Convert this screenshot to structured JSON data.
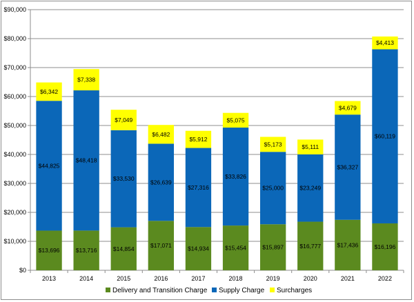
{
  "chart_data": {
    "type": "bar",
    "stacked": true,
    "categories": [
      "2013",
      "2014",
      "2015",
      "2016",
      "2017",
      "2018",
      "2019",
      "2020",
      "2021",
      "2022"
    ],
    "series": [
      {
        "name": "Delivery and Transition Charge",
        "color": "#5b8a1f",
        "values": [
          13696,
          13716,
          14854,
          17071,
          14934,
          15454,
          15897,
          16777,
          17436,
          16196
        ],
        "labels": [
          "$13,696",
          "$13,716",
          "$14,854",
          "$17,071",
          "$14,934",
          "$15,454",
          "$15,897",
          "$16,777",
          "$17,436",
          "$16,196"
        ]
      },
      {
        "name": "Supply Charge",
        "color": "#0b67b8",
        "values": [
          44825,
          48418,
          33530,
          26639,
          27316,
          33826,
          25000,
          23249,
          36327,
          60119
        ],
        "labels": [
          "$44,825",
          "$48,418",
          "$33,530",
          "$26,639",
          "$27,316",
          "$33,826",
          "$25,000",
          "$23,249",
          "$36,327",
          "$60,119"
        ]
      },
      {
        "name": "Surcharges",
        "color": "#ffff00",
        "values": [
          6342,
          7338,
          7049,
          6482,
          5912,
          5075,
          5173,
          5111,
          4679,
          4413
        ],
        "labels": [
          "$6,342",
          "$7,338",
          "$7,049",
          "$6,482",
          "$5,912",
          "$5,075",
          "$5,173",
          "$5,111",
          "$4,679",
          "$4,413"
        ]
      }
    ],
    "ylim": [
      0,
      90000
    ],
    "yticks": [
      0,
      10000,
      20000,
      30000,
      40000,
      50000,
      60000,
      70000,
      80000,
      90000
    ],
    "ytick_labels": [
      "$0",
      "$10,000",
      "$20,000",
      "$30,000",
      "$40,000",
      "$50,000",
      "$60,000",
      "$70,000",
      "$80,000",
      "$90,000"
    ],
    "title": "",
    "xlabel": "",
    "ylabel": "",
    "grid": "horizontal",
    "legend_position": "bottom"
  }
}
